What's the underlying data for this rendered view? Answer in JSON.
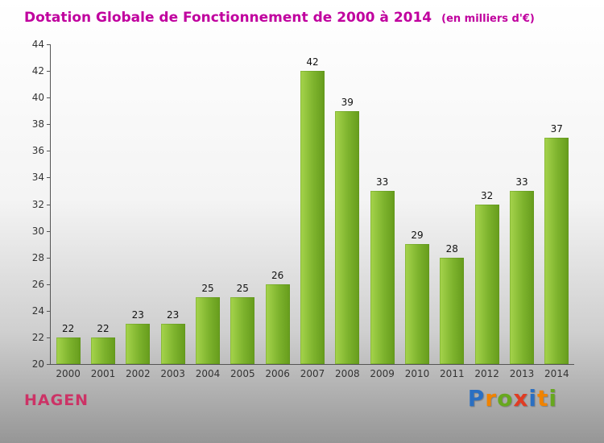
{
  "title": "Dotation Globale de Fonctionnement de 2000 à 2014",
  "subtitle": "(en milliers d'€)",
  "chart_data": {
    "type": "bar",
    "categories": [
      "2000",
      "2001",
      "2002",
      "2003",
      "2004",
      "2005",
      "2006",
      "2007",
      "2008",
      "2009",
      "2010",
      "2011",
      "2012",
      "2013",
      "2014"
    ],
    "values": [
      22,
      22,
      23,
      23,
      25,
      25,
      26,
      42,
      39,
      33,
      29,
      28,
      32,
      33,
      37
    ],
    "title": "Dotation Globale de Fonctionnement de 2000 à 2014",
    "subtitle": "(en milliers d'€)",
    "xlabel": "",
    "ylabel": "",
    "ylim": [
      20,
      44
    ],
    "ytick_step": 2,
    "grid": false,
    "legend": "none",
    "bar_gradient": [
      "#a6d44c",
      "#669c1c"
    ]
  },
  "footer": {
    "left": "HAGEN",
    "logo_letters": [
      {
        "ch": "P",
        "color": "#2a6fc2"
      },
      {
        "ch": "r",
        "color": "#f08300"
      },
      {
        "ch": "o",
        "color": "#67a81f"
      },
      {
        "ch": "x",
        "color": "#e03c23"
      },
      {
        "ch": "i",
        "color": "#2a6fc2"
      },
      {
        "ch": "t",
        "color": "#f08300"
      },
      {
        "ch": "i",
        "color": "#67a81f"
      }
    ]
  },
  "colors": {
    "title": "#c0009e",
    "subtitle": "#c0009e",
    "footer_left": "#cc3366",
    "axis": "#555555",
    "tick_label": "#333333",
    "value_label": "#111111"
  }
}
